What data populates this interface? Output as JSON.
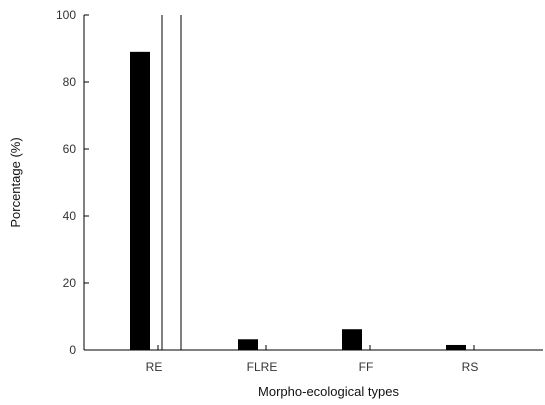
{
  "chart_data": {
    "type": "bar",
    "title": "",
    "xlabel": "Morpho-ecological types",
    "ylabel": "Porcentage (%)",
    "categories": [
      "RE",
      "FLRE",
      "FF",
      "RS"
    ],
    "series": [
      {
        "values": [
          89,
          3.2,
          6.2,
          1.5
        ]
      }
    ],
    "ylim": [
      0,
      100
    ],
    "yticks": [
      0,
      20,
      40,
      60,
      80,
      100
    ],
    "grid": false,
    "legend": "none",
    "bar_color": "#000000",
    "axis_color": "#000000"
  }
}
